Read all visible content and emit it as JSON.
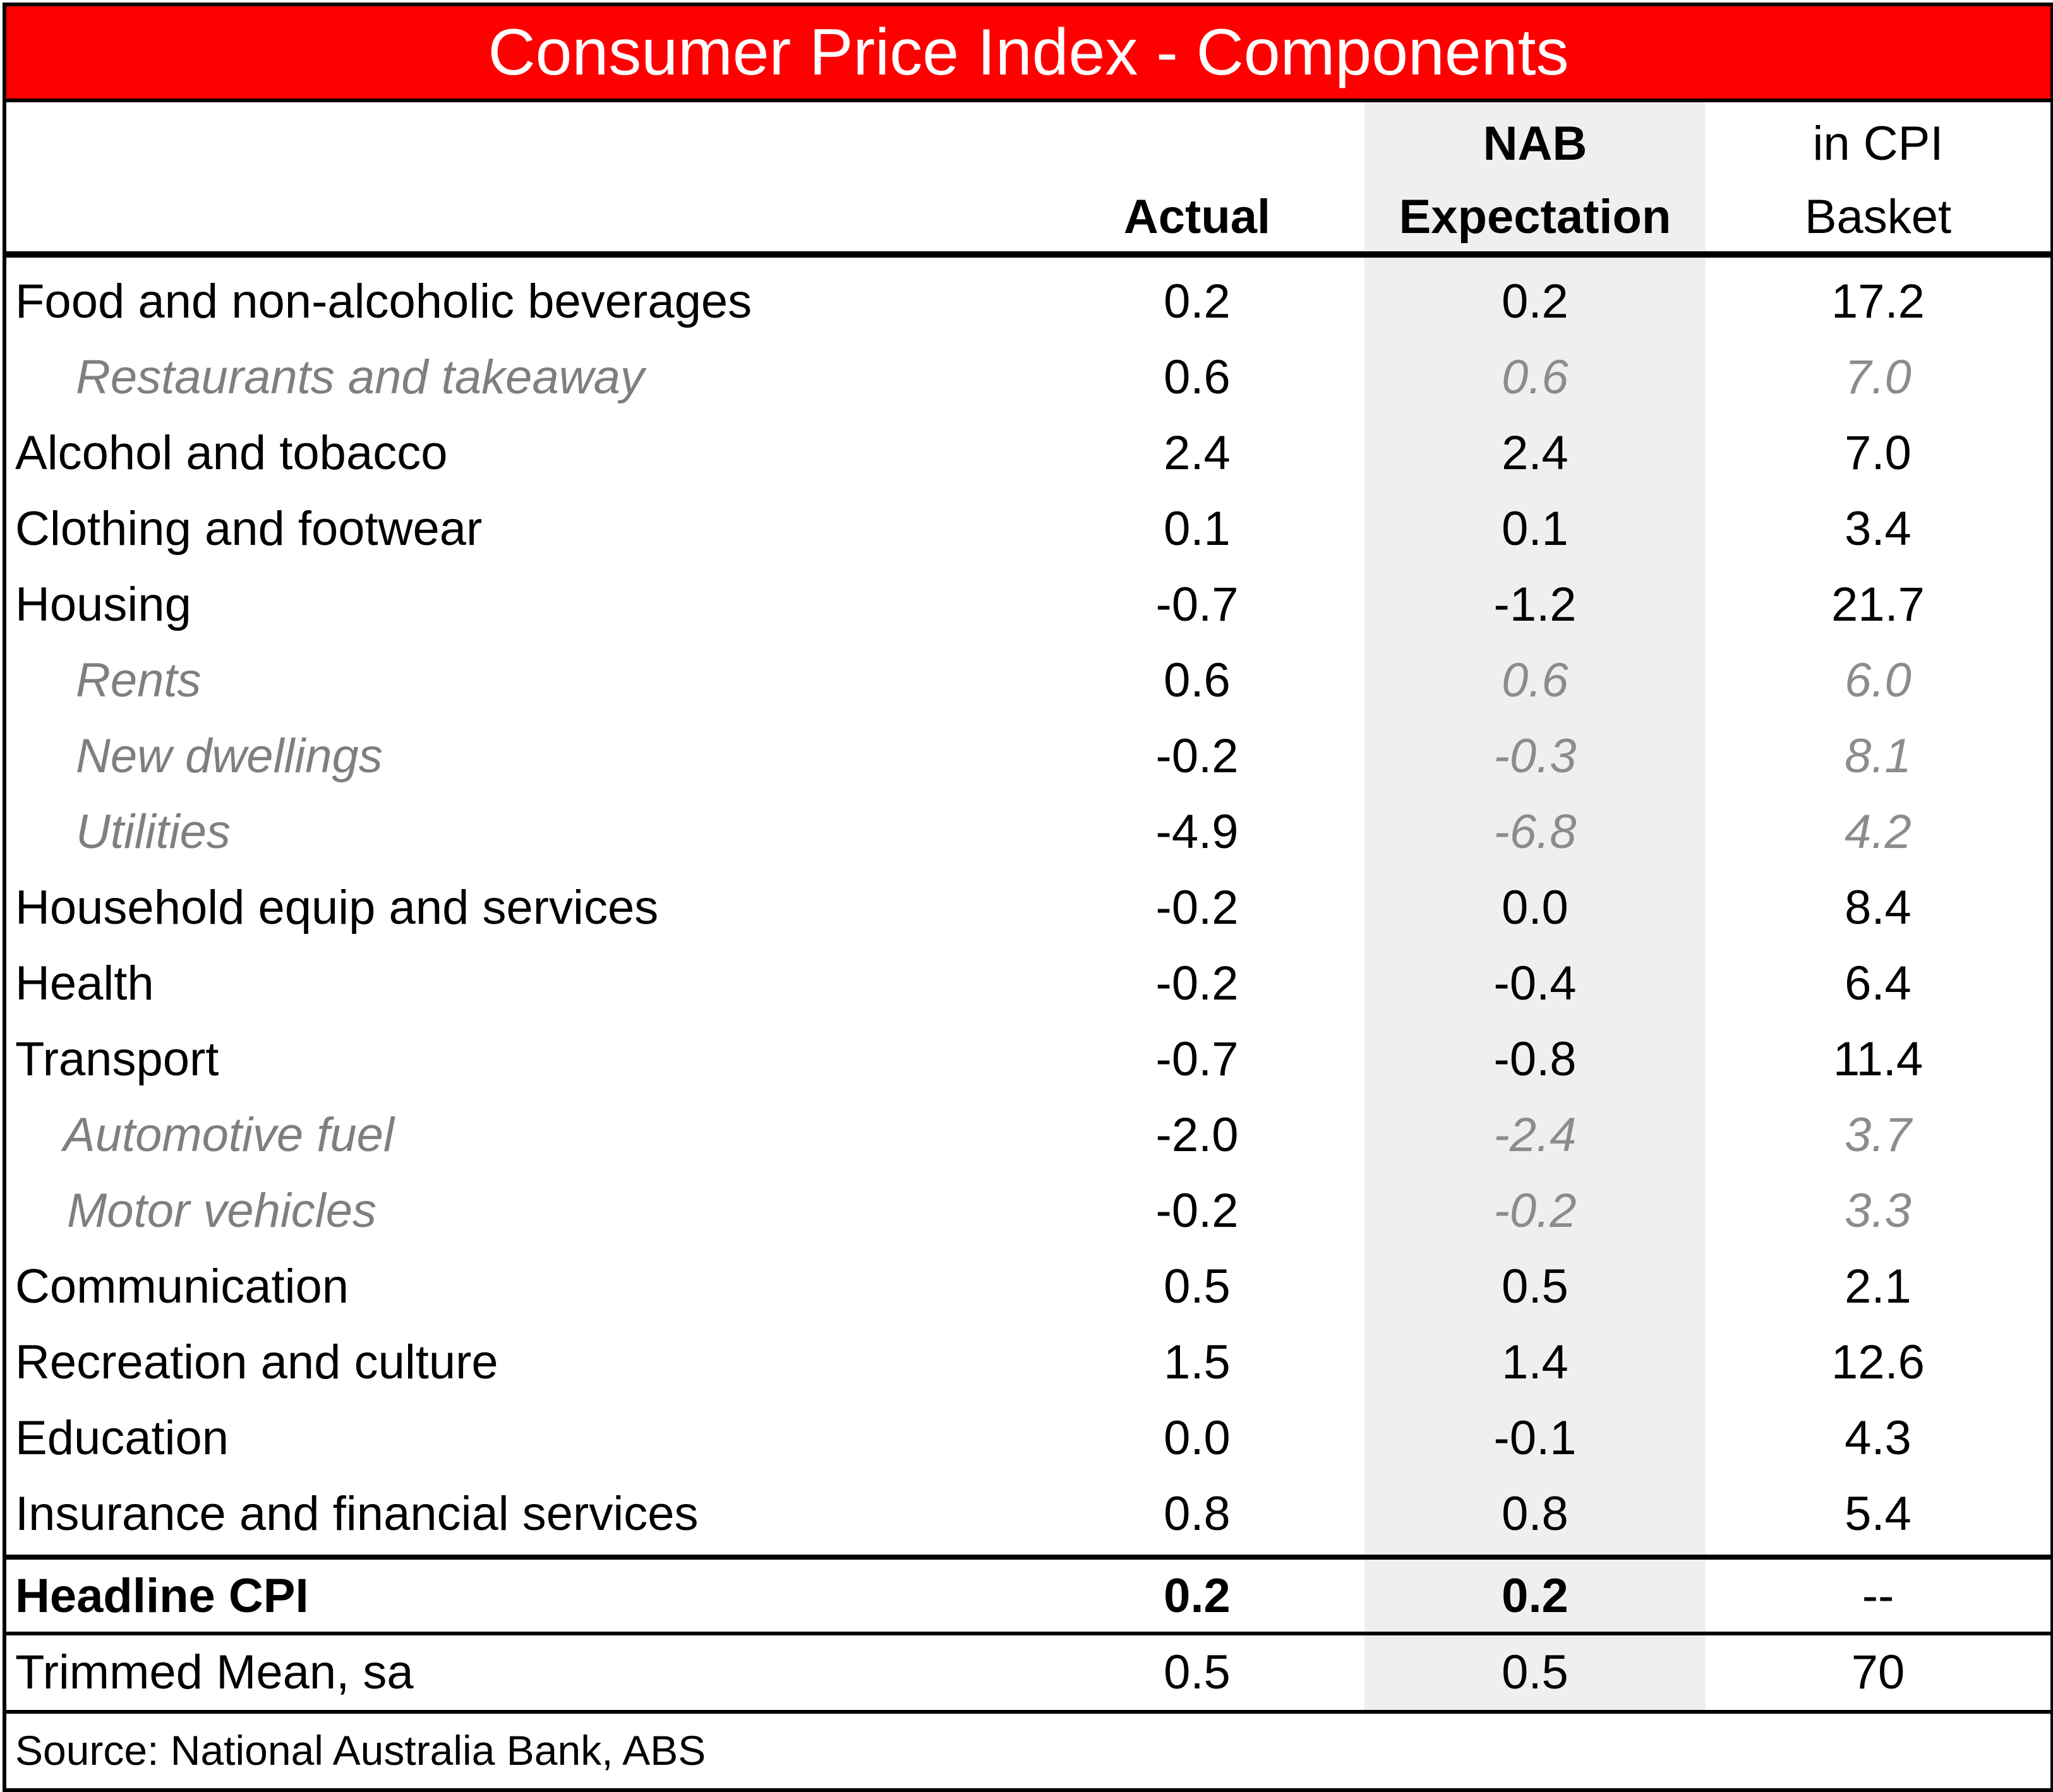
{
  "title": "Consumer Price Index - Components",
  "header": {
    "actual_line1": "",
    "actual_line2": "Actual",
    "nab_line1": "NAB",
    "nab_line2": "Expectation",
    "basket_line1": "in CPI",
    "basket_line2": "Basket"
  },
  "rows": [
    {
      "label": "Food and non-alcoholic beverages",
      "actual": "0.2",
      "nab": "0.2",
      "basket": "17.2"
    },
    {
      "label": "Restaurants and takeaway",
      "actual": "0.6",
      "nab": "0.6",
      "basket": "7.0"
    },
    {
      "label": "Alcohol and tobacco",
      "actual": "2.4",
      "nab": "2.4",
      "basket": "7.0"
    },
    {
      "label": "Clothing and footwear",
      "actual": "0.1",
      "nab": "0.1",
      "basket": "3.4"
    },
    {
      "label": "Housing",
      "actual": "-0.7",
      "nab": "-1.2",
      "basket": "21.7"
    },
    {
      "label": "Rents",
      "actual": "0.6",
      "nab": "0.6",
      "basket": "6.0"
    },
    {
      "label": "New dwellings",
      "actual": "-0.2",
      "nab": "-0.3",
      "basket": "8.1"
    },
    {
      "label": "Utilities",
      "actual": "-4.9",
      "nab": "-6.8",
      "basket": "4.2"
    },
    {
      "label": "Household equip and services",
      "actual": "-0.2",
      "nab": "0.0",
      "basket": "8.4"
    },
    {
      "label": "Health",
      "actual": "-0.2",
      "nab": "-0.4",
      "basket": "6.4"
    },
    {
      "label": "Transport",
      "actual": "-0.7",
      "nab": "-0.8",
      "basket": "11.4"
    },
    {
      "label": "Automotive fuel",
      "actual": "-2.0",
      "nab": "-2.4",
      "basket": "3.7"
    },
    {
      "label": "Motor vehicles",
      "actual": "-0.2",
      "nab": "-0.2",
      "basket": "3.3"
    },
    {
      "label": "Communication",
      "actual": "0.5",
      "nab": "0.5",
      "basket": "2.1"
    },
    {
      "label": "Recreation and culture",
      "actual": "1.5",
      "nab": "1.4",
      "basket": "12.6"
    },
    {
      "label": "Education",
      "actual": "0.0",
      "nab": "-0.1",
      "basket": "4.3"
    },
    {
      "label": "Insurance and financial services",
      "actual": "0.8",
      "nab": "0.8",
      "basket": "5.4"
    }
  ],
  "headline": {
    "label": "Headline CPI",
    "actual": "0.2",
    "nab": "0.2",
    "basket": "--"
  },
  "trimmed": {
    "label": "Trimmed Mean, sa",
    "actual": "0.5",
    "nab": "0.5",
    "basket": "70"
  },
  "source": "Source: National Australia Bank, ABS",
  "colors": {
    "title_bg": "#ff0000",
    "title_text": "#ffffff",
    "nab_column_shade": "#efefef",
    "subcategory_text": "#7f7f7f"
  }
}
